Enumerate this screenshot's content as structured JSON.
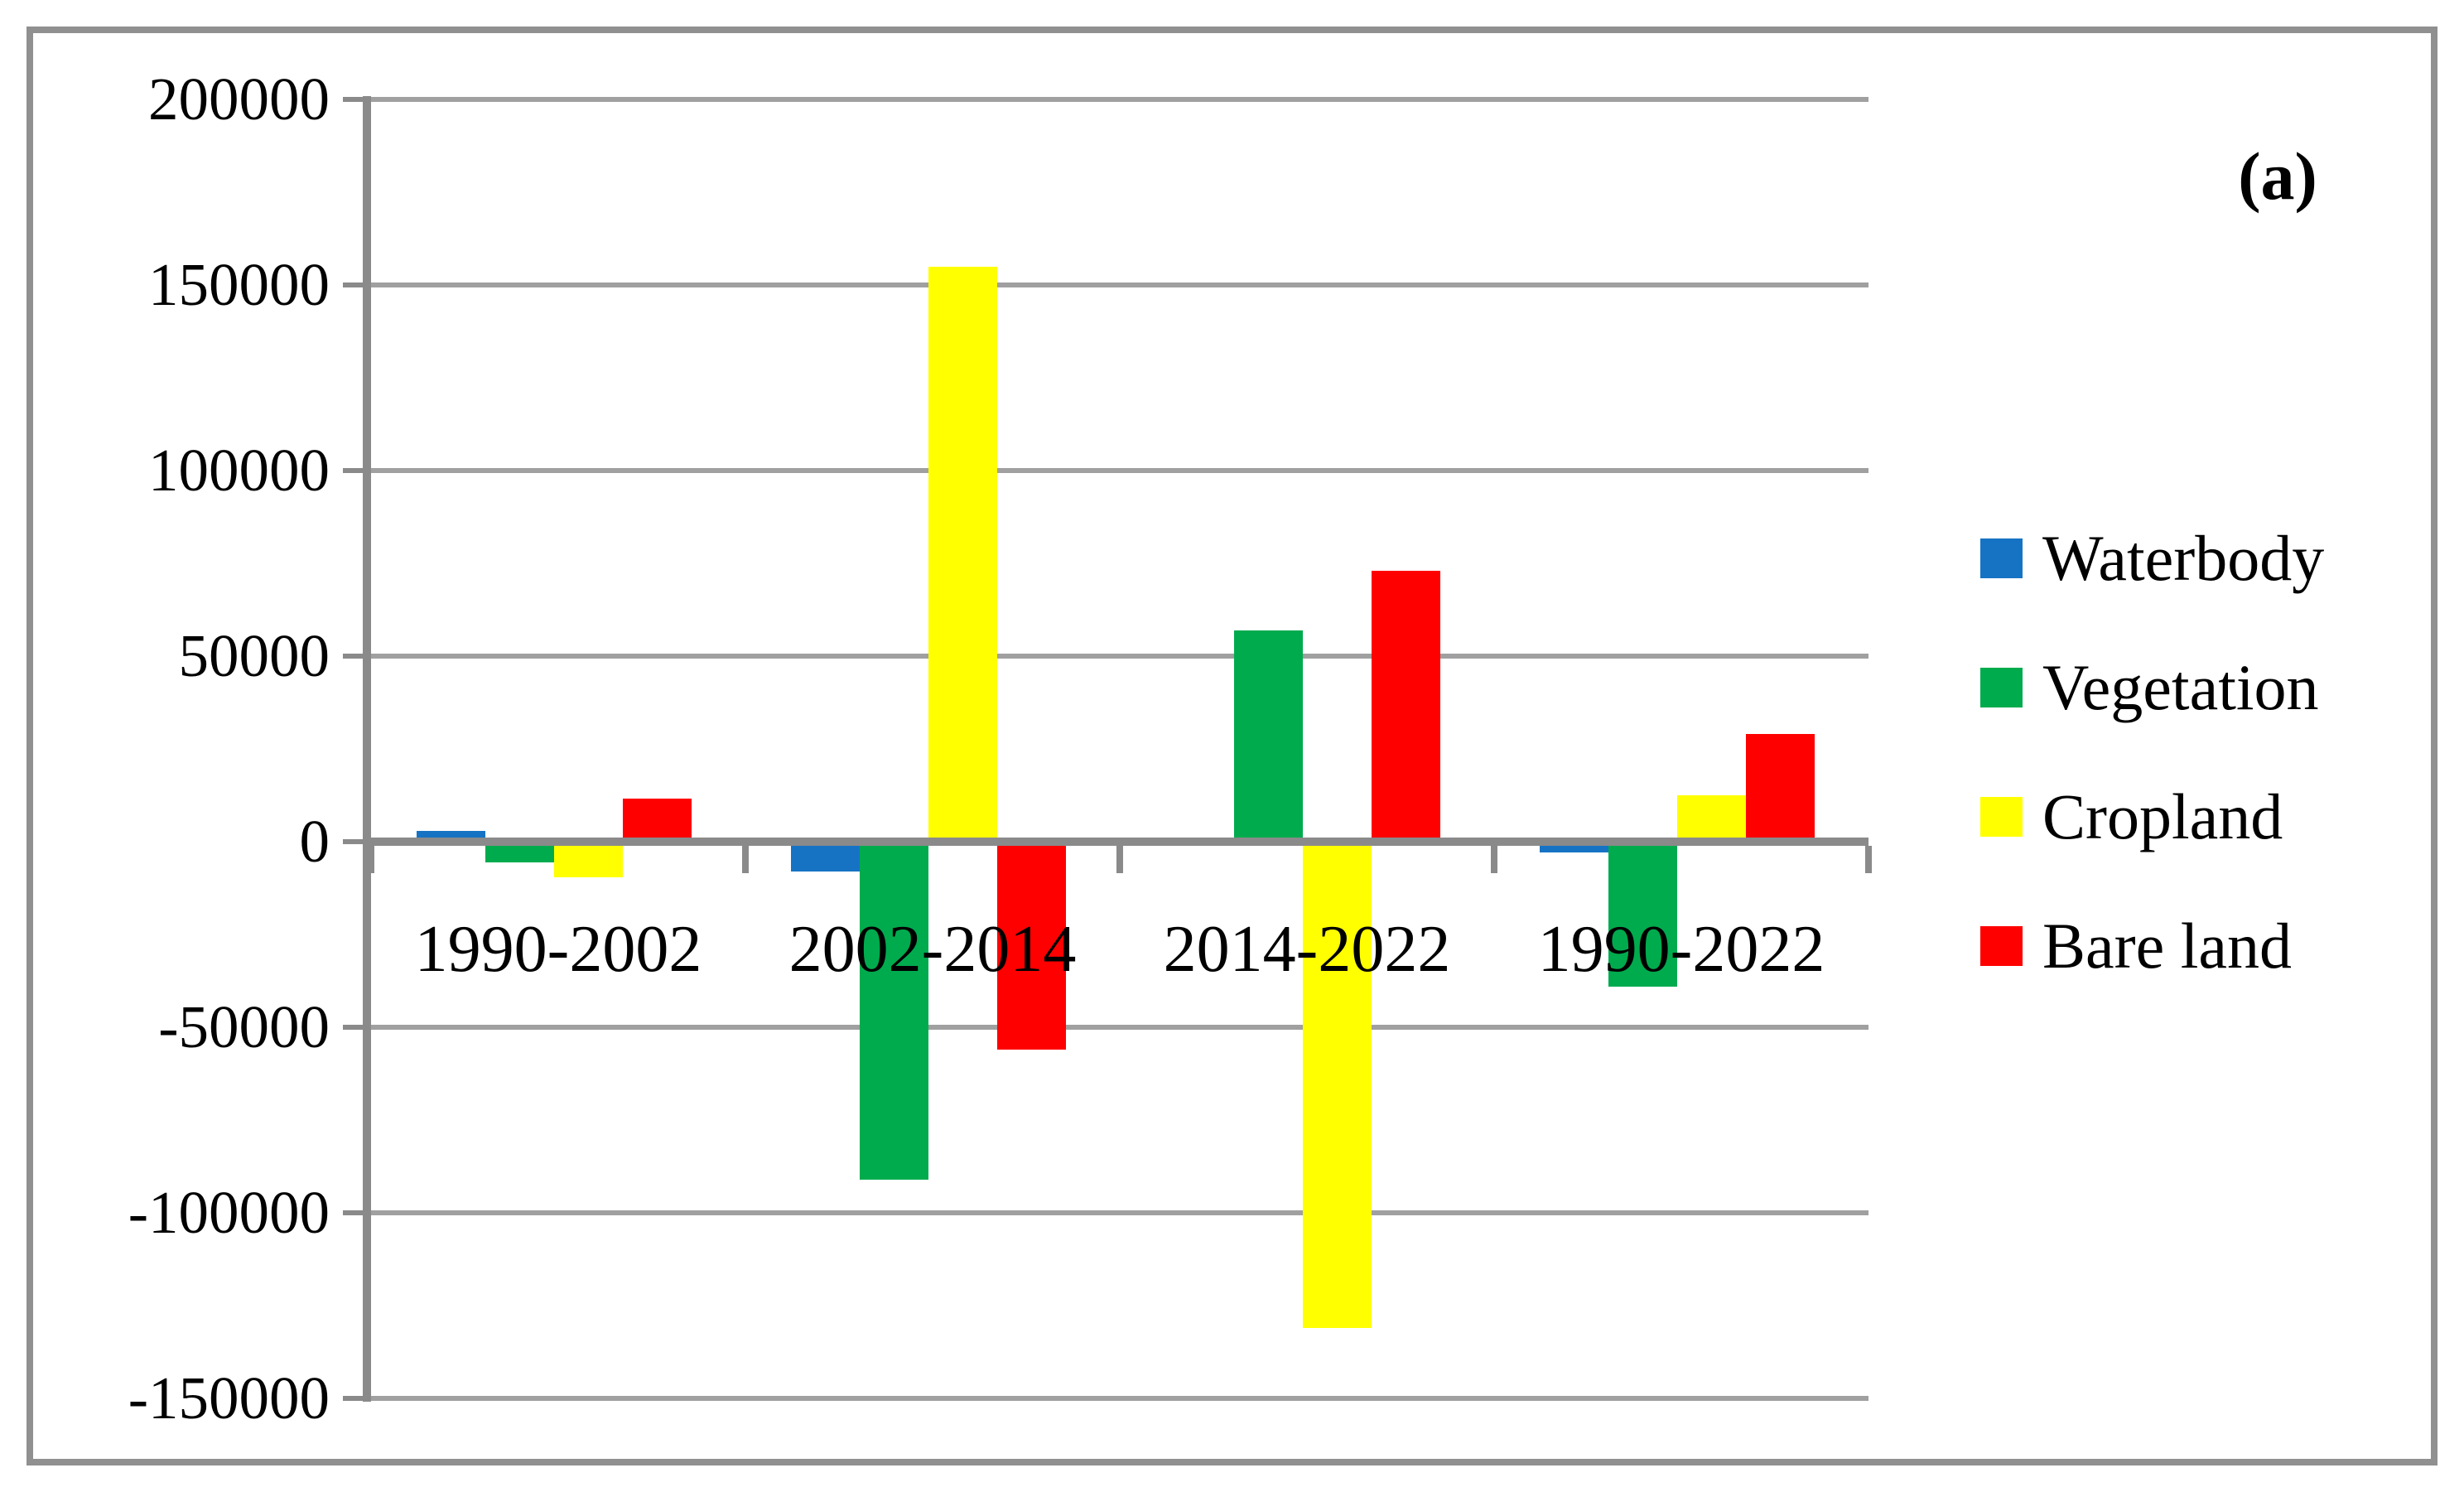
{
  "panel_label": "(a)",
  "chart_data": {
    "type": "bar",
    "title": "",
    "xlabel": "",
    "ylabel": "",
    "categories": [
      "1990-2002",
      "2002-2014",
      "2014-2022",
      "1990-2022"
    ],
    "series": [
      {
        "name": "Waterbody",
        "color": "#1673C4",
        "values": [
          3000,
          -8000,
          1000,
          -3000
        ]
      },
      {
        "name": "Vegetation",
        "color": "#00AB4E",
        "values": [
          -5500,
          -91000,
          57000,
          -39000
        ]
      },
      {
        "name": "Cropland",
        "color": "#FFFF00",
        "values": [
          -9700,
          155000,
          -131000,
          12500
        ]
      },
      {
        "name": "Bare land",
        "color": "#FF0000",
        "values": [
          11500,
          -56000,
          73000,
          29000
        ]
      }
    ],
    "ylim": [
      -150000,
      200000
    ],
    "ytick_step": 50000,
    "ytick_labels": [
      "200000",
      "150000",
      "100000",
      "50000",
      "0",
      "-50000",
      "-100000",
      "-150000"
    ],
    "grid": true,
    "legend_position": "right"
  },
  "colors": {
    "gridline": "#A0A0A0",
    "axis": "#8A8A8A",
    "border": "#909090",
    "text": "#000000",
    "background": "#FFFFFF"
  }
}
